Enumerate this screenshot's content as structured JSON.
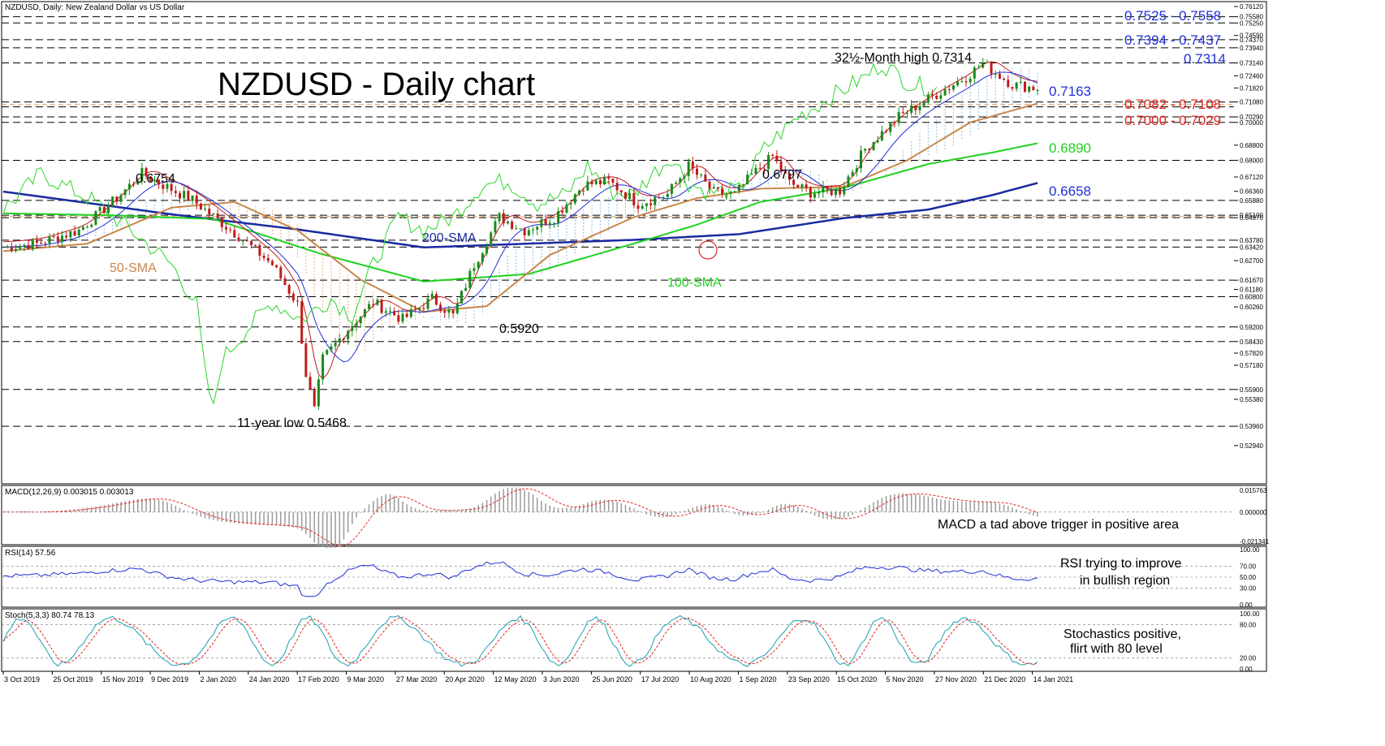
{
  "window_title": "NZDUSD, Daily:  New Zealand Dollar vs US Dollar",
  "colors": {
    "blue_level": "#1f2fd8",
    "red_level": "#e0261e",
    "green": "#1fd11f",
    "orange": "#c8874a",
    "sma200": "#1a2aa0",
    "candle_up": "#1a8a1a",
    "candle_down": "#c01a1a",
    "cloud_bull": "#7ab0e0",
    "cloud_bear": "#e8a060",
    "chikou": "#2ad62a"
  },
  "chart_data": [
    {
      "type": "candlestick",
      "title": "NZDUSD - Daily chart",
      "instrument": "NZDUSD",
      "timeframe": "Daily",
      "x_dates": [
        "3 Oct 2019",
        "25 Oct 2019",
        "15 Nov 2019",
        "9 Dec 2019",
        "2 Jan 2020",
        "24 Jan 2020",
        "17 Feb 2020",
        "9 Mar 2020",
        "27 Mar 2020",
        "20 Apr 2020",
        "12 May 2020",
        "3 Jun 2020",
        "25 Jun 2020",
        "17 Jul 2020",
        "10 Aug 2020",
        "1 Sep 2020",
        "23 Sep 2020",
        "15 Oct 2020",
        "5 Nov 2020",
        "27 Nov 2020",
        "21 Dec 2020",
        "14 Jan 2021"
      ],
      "ylim": [
        0.5212,
        0.7612
      ],
      "y_tick_labels": [
        "0.76120",
        "0.75580",
        "0.75250",
        "0.74590",
        "0.74370",
        "0.73940",
        "0.73140",
        "0.72460",
        "0.71820",
        "0.71080",
        "0.70290",
        "0.70000",
        "0.68800",
        "0.68000",
        "0.67120",
        "0.66360",
        "0.65880",
        "0.65100",
        "0.64970",
        "0.63780",
        "0.63420",
        "0.62700",
        "0.61670",
        "0.61180",
        "0.60800",
        "0.60260",
        "0.59200",
        "0.58430",
        "0.57820",
        "0.57180",
        "0.55900",
        "0.55380",
        "0.53960",
        "0.52940"
      ],
      "horizontal_levels": [
        0.7558,
        0.7525,
        0.7437,
        0.7394,
        0.7314,
        0.7108,
        0.7082,
        0.7029,
        0.7,
        0.68,
        0.6588,
        0.651,
        0.6497,
        0.6378,
        0.6342,
        0.6167,
        0.608,
        0.592,
        0.5843,
        0.559,
        0.5396
      ],
      "price_path": [
        [
          0,
          0.634
        ],
        [
          8,
          0.636
        ],
        [
          18,
          0.643
        ],
        [
          27,
          0.66
        ],
        [
          33,
          0.673
        ],
        [
          38,
          0.667
        ],
        [
          45,
          0.659
        ],
        [
          56,
          0.64
        ],
        [
          64,
          0.625
        ],
        [
          70,
          0.604
        ],
        [
          72,
          0.567
        ],
        [
          74,
          0.548
        ],
        [
          76,
          0.575
        ],
        [
          82,
          0.591
        ],
        [
          88,
          0.605
        ],
        [
          95,
          0.596
        ],
        [
          102,
          0.607
        ],
        [
          107,
          0.598
        ],
        [
          112,
          0.625
        ],
        [
          118,
          0.65
        ],
        [
          124,
          0.643
        ],
        [
          131,
          0.65
        ],
        [
          138,
          0.667
        ],
        [
          144,
          0.669
        ],
        [
          151,
          0.657
        ],
        [
          158,
          0.662
        ],
        [
          163,
          0.677
        ],
        [
          169,
          0.663
        ],
        [
          174,
          0.662
        ],
        [
          178,
          0.672
        ],
        [
          183,
          0.682
        ],
        [
          187,
          0.668
        ],
        [
          192,
          0.663
        ],
        [
          199,
          0.664
        ],
        [
          205,
          0.686
        ],
        [
          213,
          0.703
        ],
        [
          222,
          0.715
        ],
        [
          229,
          0.724
        ],
        [
          233,
          0.731
        ],
        [
          240,
          0.72
        ],
        [
          246,
          0.718
        ]
      ],
      "sma": [
        {
          "name": "200-SMA",
          "values": [
            [
              0,
              0.6635
            ],
            [
              40,
              0.6515
            ],
            [
              70,
              0.6435
            ],
            [
              100,
              0.634
            ],
            [
              125,
              0.636
            ],
            [
              150,
              0.638
            ],
            [
              175,
              0.641
            ],
            [
              200,
              0.6495
            ],
            [
              220,
              0.654
            ],
            [
              235,
              0.6615
            ],
            [
              246,
              0.668
            ]
          ]
        },
        {
          "name": "100-SMA",
          "values": [
            [
              0,
              0.652
            ],
            [
              25,
              0.651
            ],
            [
              50,
              0.649
            ],
            [
              75,
              0.631
            ],
            [
              100,
              0.616
            ],
            [
              125,
              0.62
            ],
            [
              150,
              0.636
            ],
            [
              165,
              0.646
            ],
            [
              180,
              0.658
            ],
            [
              200,
              0.6655
            ],
            [
              220,
              0.678
            ],
            [
              235,
              0.684
            ],
            [
              246,
              0.689
            ]
          ]
        },
        {
          "name": "50-SMA",
          "values": [
            [
              0,
              0.632
            ],
            [
              20,
              0.636
            ],
            [
              40,
              0.655
            ],
            [
              55,
              0.658
            ],
            [
              70,
              0.643
            ],
            [
              85,
              0.617
            ],
            [
              100,
              0.6
            ],
            [
              115,
              0.603
            ],
            [
              130,
              0.63
            ],
            [
              150,
              0.65
            ],
            [
              165,
              0.66
            ],
            [
              180,
              0.665
            ],
            [
              200,
              0.666
            ],
            [
              215,
              0.68
            ],
            [
              230,
              0.7
            ],
            [
              246,
              0.71
            ]
          ]
        }
      ],
      "labels": {
        "level_7525_7558": "0.7525 - 0.7558",
        "level_7394_7437": "0.7394 - 0.7437",
        "level_7314": "0.7314",
        "level_7163": "0.7163",
        "level_7082_7108": "0.7082 - 0.7108",
        "level_7000_7029": "0.7000 - 0.7029",
        "level_6890": "0.6890",
        "level_6658": "0.6658",
        "month_high": "32½-Month high 0.7314",
        "high_6754": "0.6754",
        "high_6797": "0.6797",
        "low_5920": "0.5920",
        "year_low": "11-year low 0.5468",
        "sma200": "200-SMA",
        "sma50": "50-SMA",
        "sma100": "100-SMA"
      }
    },
    {
      "type": "histogram",
      "name": "MACD",
      "header": "MACD(12,26,9) 0.003015 0.003013",
      "ylim": [
        -0.021341,
        0.015763
      ],
      "y_tick_labels": [
        "0.015763",
        "0.000000",
        "-0.021341"
      ],
      "annotation": "MACD a tad above trigger in positive area"
    },
    {
      "type": "line",
      "name": "RSI",
      "header": "RSI(14) 57.56",
      "ylim": [
        0,
        100
      ],
      "y_tick_labels": [
        "100.00",
        "70.00",
        "50.00",
        "30.00",
        "0.00"
      ],
      "annotation_line1": "RSI trying to improve",
      "annotation_line2": "in bullish region"
    },
    {
      "type": "line",
      "name": "Stochastics",
      "header": "Stoch(5,3,3) 80.74 78.13",
      "ylim": [
        0,
        100
      ],
      "y_tick_labels": [
        "100.00",
        "80.00",
        "20.00",
        "0.00"
      ],
      "annotation_line1": "Stochastics positive,",
      "annotation_line2": "flirt with 80 level"
    }
  ]
}
